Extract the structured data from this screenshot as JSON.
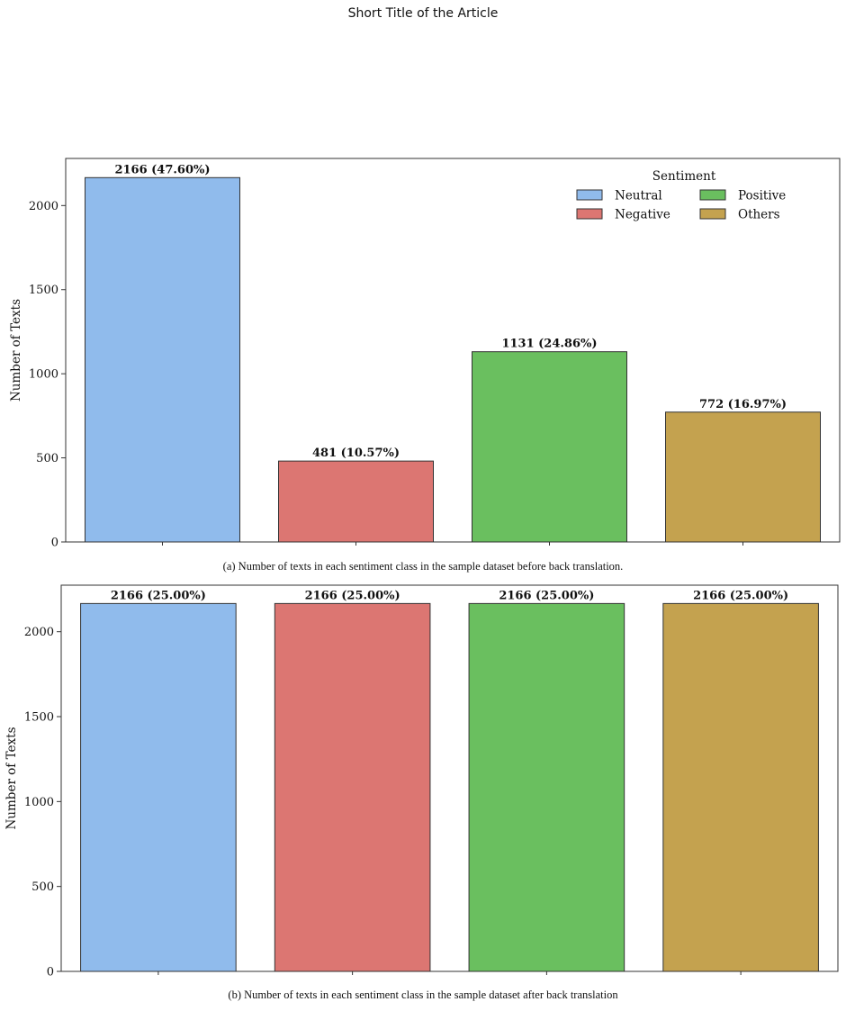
{
  "page": {
    "header": "Short Title of the Article"
  },
  "chart_data": [
    {
      "type": "bar",
      "categories": [
        "Neutral",
        "Negative",
        "Positive",
        "Others"
      ],
      "values": [
        2166,
        481,
        1131,
        772
      ],
      "data_labels": [
        "2166 (47.60%)",
        "481 (10.57%)",
        "1131 (24.86%)",
        "772 (16.97%)"
      ],
      "colors": [
        "#90bbec",
        "#dc7672",
        "#6abf5f",
        "#c4a24f"
      ],
      "ylabel": "Number of Texts",
      "ylim": [
        0,
        2280
      ],
      "yticks": [
        0,
        500,
        1000,
        1500,
        2000
      ],
      "grid": false,
      "legend": {
        "title": "Sentiment",
        "placement": "top-right",
        "entries": [
          "Neutral",
          "Positive",
          "Negative",
          "Others"
        ],
        "entry_colors": [
          "#90bbec",
          "#6abf5f",
          "#dc7672",
          "#c4a24f"
        ]
      },
      "caption": "(a) Number of texts in each sentiment class in the sample dataset before back translation."
    },
    {
      "type": "bar",
      "categories": [
        "Neutral",
        "Negative",
        "Positive",
        "Others"
      ],
      "values": [
        2166,
        2166,
        2166,
        2166
      ],
      "data_labels": [
        "2166 (25.00%)",
        "2166 (25.00%)",
        "2166 (25.00%)",
        "2166 (25.00%)"
      ],
      "colors": [
        "#90bbec",
        "#dc7672",
        "#6abf5f",
        "#c4a24f"
      ],
      "ylabel": "Number of Texts",
      "ylim": [
        0,
        2274
      ],
      "yticks": [
        0,
        500,
        1000,
        1500,
        2000
      ],
      "grid": false,
      "caption": "(b) Number of texts in each sentiment class in the sample dataset after back translation"
    }
  ]
}
